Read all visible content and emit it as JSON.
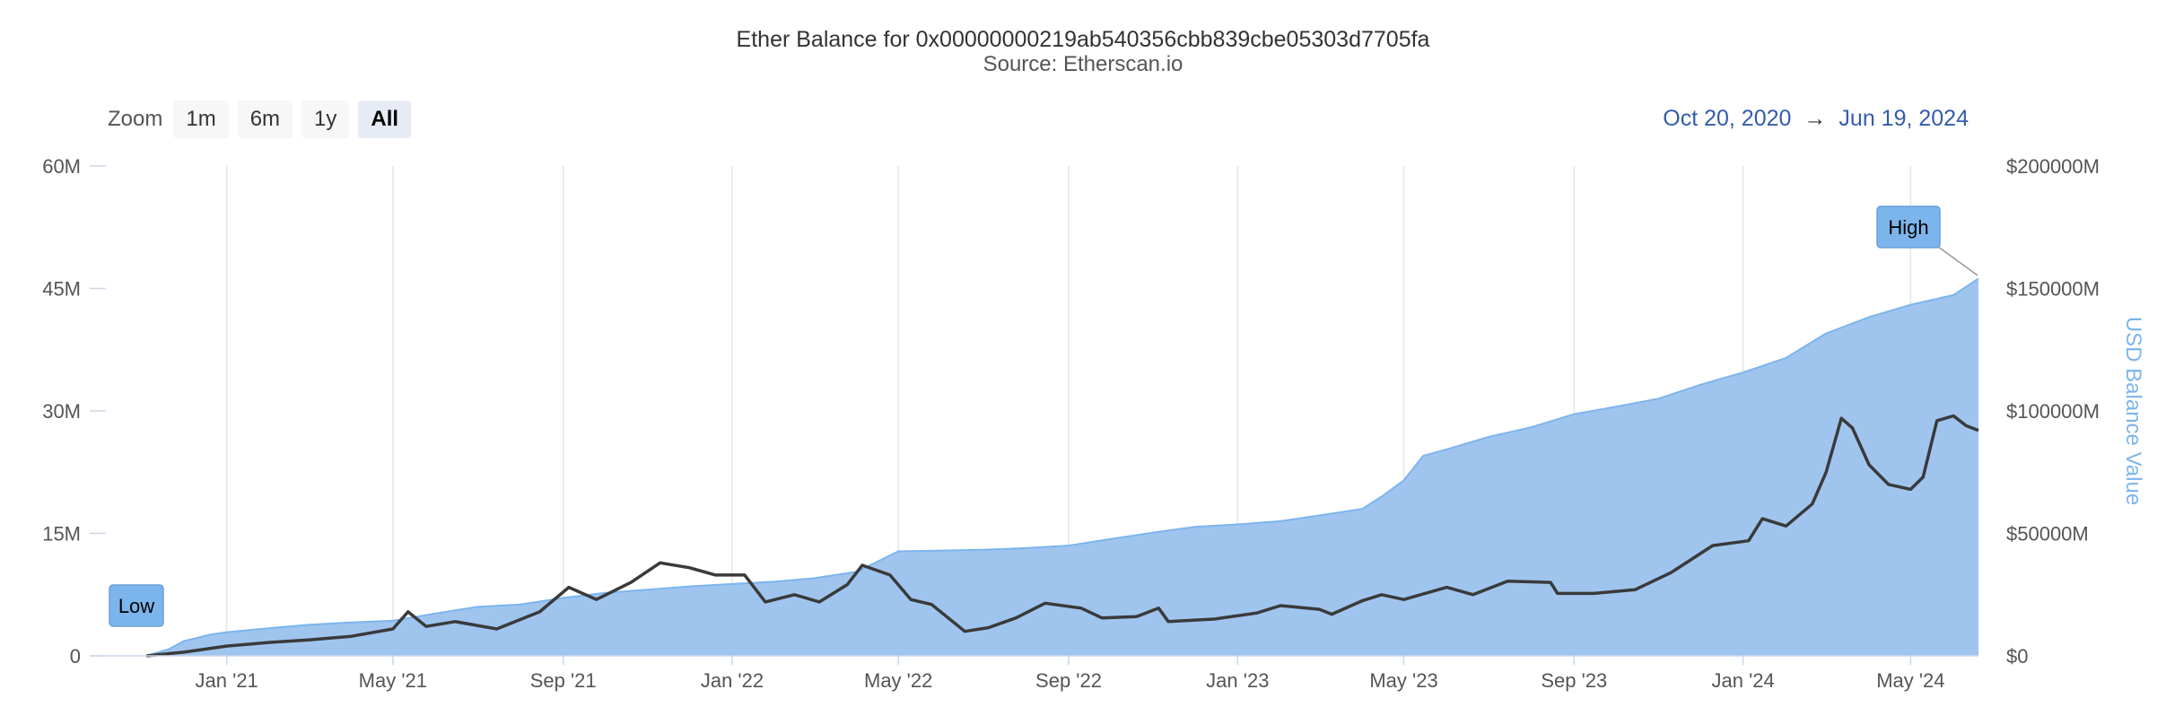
{
  "chart_data": {
    "type": "area",
    "title": "Ether Balance for 0x00000000219ab540356cbb839cbe05303d7705fa",
    "subtitle": "Source: Etherscan.io",
    "zoom": {
      "label": "Zoom",
      "buttons": [
        "1m",
        "6m",
        "1y",
        "All"
      ],
      "selected": "All"
    },
    "range": {
      "from": "Oct 20, 2020",
      "arrow": "→",
      "to": "Jun 19, 2024"
    },
    "x_ticks": [
      {
        "label": "Jan '21",
        "date": "2021-01-01"
      },
      {
        "label": "May '21",
        "date": "2021-05-01"
      },
      {
        "label": "Sep '21",
        "date": "2021-09-01"
      },
      {
        "label": "Jan '22",
        "date": "2022-01-01"
      },
      {
        "label": "May '22",
        "date": "2022-05-01"
      },
      {
        "label": "Sep '22",
        "date": "2022-09-01"
      },
      {
        "label": "Jan '23",
        "date": "2023-01-01"
      },
      {
        "label": "May '23",
        "date": "2023-05-01"
      },
      {
        "label": "Sep '23",
        "date": "2023-09-01"
      },
      {
        "label": "Jan '24",
        "date": "2024-01-01"
      },
      {
        "label": "May '24",
        "date": "2024-05-01"
      }
    ],
    "x_range": [
      "2020-10-20",
      "2024-06-19"
    ],
    "y_left": {
      "ticks": [
        "0",
        "15M",
        "30M",
        "45M",
        "60M"
      ],
      "tick_values": [
        0,
        15000000,
        30000000,
        45000000,
        60000000
      ],
      "range": [
        0,
        60000000
      ],
      "title": ""
    },
    "y_right": {
      "ticks": [
        "$0",
        "$50000M",
        "$100000M",
        "$150000M",
        "$200000M"
      ],
      "tick_values": [
        0,
        50000,
        100000,
        150000,
        200000
      ],
      "range": [
        0,
        200000
      ],
      "unit": "M USD",
      "title": "USD Balance Value"
    },
    "grid": "vertical",
    "series": [
      {
        "name": "Ether Balance",
        "kind": "area",
        "axis": "left",
        "color": "#9fc5ef",
        "line_color": "#7cb5ec",
        "points": [
          [
            "2020-11-04",
            0
          ],
          [
            "2020-11-20",
            800000
          ],
          [
            "2020-12-01",
            1800000
          ],
          [
            "2020-12-20",
            2600000
          ],
          [
            "2021-01-01",
            2900000
          ],
          [
            "2021-02-01",
            3400000
          ],
          [
            "2021-03-01",
            3800000
          ],
          [
            "2021-04-01",
            4100000
          ],
          [
            "2021-05-01",
            4300000
          ],
          [
            "2021-06-01",
            5200000
          ],
          [
            "2021-07-01",
            6000000
          ],
          [
            "2021-08-01",
            6300000
          ],
          [
            "2021-09-01",
            7100000
          ],
          [
            "2021-10-01",
            7700000
          ],
          [
            "2021-11-01",
            8100000
          ],
          [
            "2021-12-01",
            8500000
          ],
          [
            "2022-01-01",
            8800000
          ],
          [
            "2022-02-01",
            9100000
          ],
          [
            "2022-03-01",
            9500000
          ],
          [
            "2022-04-01",
            10300000
          ],
          [
            "2022-05-01",
            12800000
          ],
          [
            "2022-06-01",
            12900000
          ],
          [
            "2022-07-01",
            13000000
          ],
          [
            "2022-08-01",
            13200000
          ],
          [
            "2022-09-01",
            13500000
          ],
          [
            "2022-10-01",
            14300000
          ],
          [
            "2022-11-01",
            15100000
          ],
          [
            "2022-12-01",
            15800000
          ],
          [
            "2023-01-01",
            16100000
          ],
          [
            "2023-02-01",
            16500000
          ],
          [
            "2023-03-01",
            17200000
          ],
          [
            "2023-04-01",
            18000000
          ],
          [
            "2023-04-15",
            19500000
          ],
          [
            "2023-05-01",
            21500000
          ],
          [
            "2023-05-15",
            24500000
          ],
          [
            "2023-06-01",
            25300000
          ],
          [
            "2023-07-01",
            26800000
          ],
          [
            "2023-08-01",
            28000000
          ],
          [
            "2023-09-01",
            29600000
          ],
          [
            "2023-10-01",
            30500000
          ],
          [
            "2023-11-01",
            31500000
          ],
          [
            "2023-12-01",
            33200000
          ],
          [
            "2024-01-01",
            34700000
          ],
          [
            "2024-02-01",
            36500000
          ],
          [
            "2024-03-01",
            39500000
          ],
          [
            "2024-04-01",
            41500000
          ],
          [
            "2024-05-01",
            43000000
          ],
          [
            "2024-06-01",
            44200000
          ],
          [
            "2024-06-19",
            46200000
          ]
        ]
      },
      {
        "name": "USD Balance Value",
        "kind": "line",
        "axis": "right",
        "color": "#3a3a3a",
        "points": [
          [
            "2020-11-04",
            0
          ],
          [
            "2020-12-01",
            1500
          ],
          [
            "2021-01-01",
            4000
          ],
          [
            "2021-02-01",
            5500
          ],
          [
            "2021-03-01",
            6500
          ],
          [
            "2021-04-01",
            8000
          ],
          [
            "2021-05-01",
            11000
          ],
          [
            "2021-05-12",
            18000
          ],
          [
            "2021-05-25",
            12000
          ],
          [
            "2021-06-15",
            14000
          ],
          [
            "2021-07-15",
            11000
          ],
          [
            "2021-08-15",
            18000
          ],
          [
            "2021-09-05",
            28000
          ],
          [
            "2021-09-25",
            23000
          ],
          [
            "2021-10-20",
            30000
          ],
          [
            "2021-11-10",
            38000
          ],
          [
            "2021-12-01",
            36000
          ],
          [
            "2021-12-20",
            33000
          ],
          [
            "2022-01-10",
            33000
          ],
          [
            "2022-01-25",
            22000
          ],
          [
            "2022-02-15",
            25000
          ],
          [
            "2022-03-05",
            22000
          ],
          [
            "2022-03-25",
            29000
          ],
          [
            "2022-04-05",
            37000
          ],
          [
            "2022-04-25",
            33000
          ],
          [
            "2022-05-10",
            23000
          ],
          [
            "2022-05-25",
            21000
          ],
          [
            "2022-06-18",
            10000
          ],
          [
            "2022-07-05",
            11500
          ],
          [
            "2022-07-25",
            15500
          ],
          [
            "2022-08-15",
            21500
          ],
          [
            "2022-09-10",
            19500
          ],
          [
            "2022-09-25",
            15500
          ],
          [
            "2022-10-20",
            16000
          ],
          [
            "2022-11-05",
            19500
          ],
          [
            "2022-11-12",
            14000
          ],
          [
            "2022-12-15",
            15000
          ],
          [
            "2023-01-15",
            17500
          ],
          [
            "2023-02-01",
            20500
          ],
          [
            "2023-03-01",
            19000
          ],
          [
            "2023-03-10",
            17000
          ],
          [
            "2023-04-01",
            22500
          ],
          [
            "2023-04-15",
            25000
          ],
          [
            "2023-05-01",
            23000
          ],
          [
            "2023-06-01",
            28000
          ],
          [
            "2023-06-20",
            25000
          ],
          [
            "2023-07-15",
            30500
          ],
          [
            "2023-08-15",
            30000
          ],
          [
            "2023-08-20",
            25500
          ],
          [
            "2023-09-15",
            25500
          ],
          [
            "2023-10-15",
            27000
          ],
          [
            "2023-11-10",
            34000
          ],
          [
            "2023-12-10",
            45000
          ],
          [
            "2024-01-05",
            47000
          ],
          [
            "2024-01-15",
            56000
          ],
          [
            "2024-02-01",
            53000
          ],
          [
            "2024-02-20",
            62000
          ],
          [
            "2024-03-01",
            75000
          ],
          [
            "2024-03-12",
            97000
          ],
          [
            "2024-03-20",
            93000
          ],
          [
            "2024-04-01",
            78000
          ],
          [
            "2024-04-15",
            70000
          ],
          [
            "2024-05-01",
            68000
          ],
          [
            "2024-05-10",
            73000
          ],
          [
            "2024-05-20",
            96000
          ],
          [
            "2024-06-01",
            98000
          ],
          [
            "2024-06-10",
            94000
          ],
          [
            "2024-06-19",
            92000
          ]
        ]
      }
    ],
    "flags": [
      {
        "label": "Low",
        "date": "2020-11-04"
      },
      {
        "label": "High",
        "date": "2024-05-26"
      }
    ]
  }
}
